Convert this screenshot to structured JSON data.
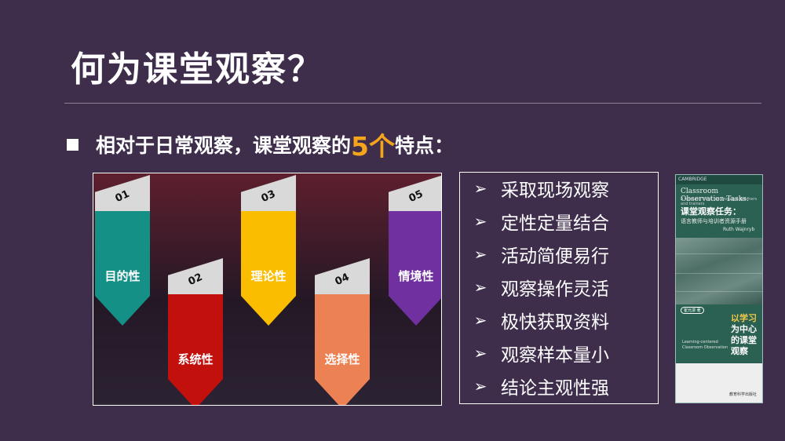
{
  "title": "何为课堂观察？",
  "bullet": {
    "prefix": "相对于日常观察，课堂观察的",
    "highlight": "5个",
    "suffix": "特点："
  },
  "cards": [
    {
      "num": "01",
      "label": "目的性",
      "color": "#159087"
    },
    {
      "num": "02",
      "label": "系统性",
      "color": "#c2100c"
    },
    {
      "num": "03",
      "label": "理论性",
      "color": "#fbbd00"
    },
    {
      "num": "04",
      "label": "选择性",
      "color": "#ec8154"
    },
    {
      "num": "05",
      "label": "情境性",
      "color": "#7030a0"
    }
  ],
  "features": [
    "采取现场观察",
    "定性定量结合",
    "活动简便易行",
    "观察操作灵活",
    "极快获取资料",
    "观察样本量小",
    "结论主观性强"
  ],
  "bullet_arrow": "➢",
  "book": {
    "series": "CAMBRIDGE",
    "en_title": "Classroom Observation Tasks:",
    "en_subtitle": "A resource book for language teachers and trainers",
    "cn_title": "课堂观察任务：",
    "cn_subtitle": "语言教师与培训者资源手册",
    "author": "Ruth Wajnryb",
    "badge": "崔允漷 著",
    "vertical_title_yellow": "以学习",
    "vertical_title_white": "为中心的课堂观察",
    "en_title2": "Learning-centered Classroom Observation",
    "publisher": "教育科学出版社"
  }
}
